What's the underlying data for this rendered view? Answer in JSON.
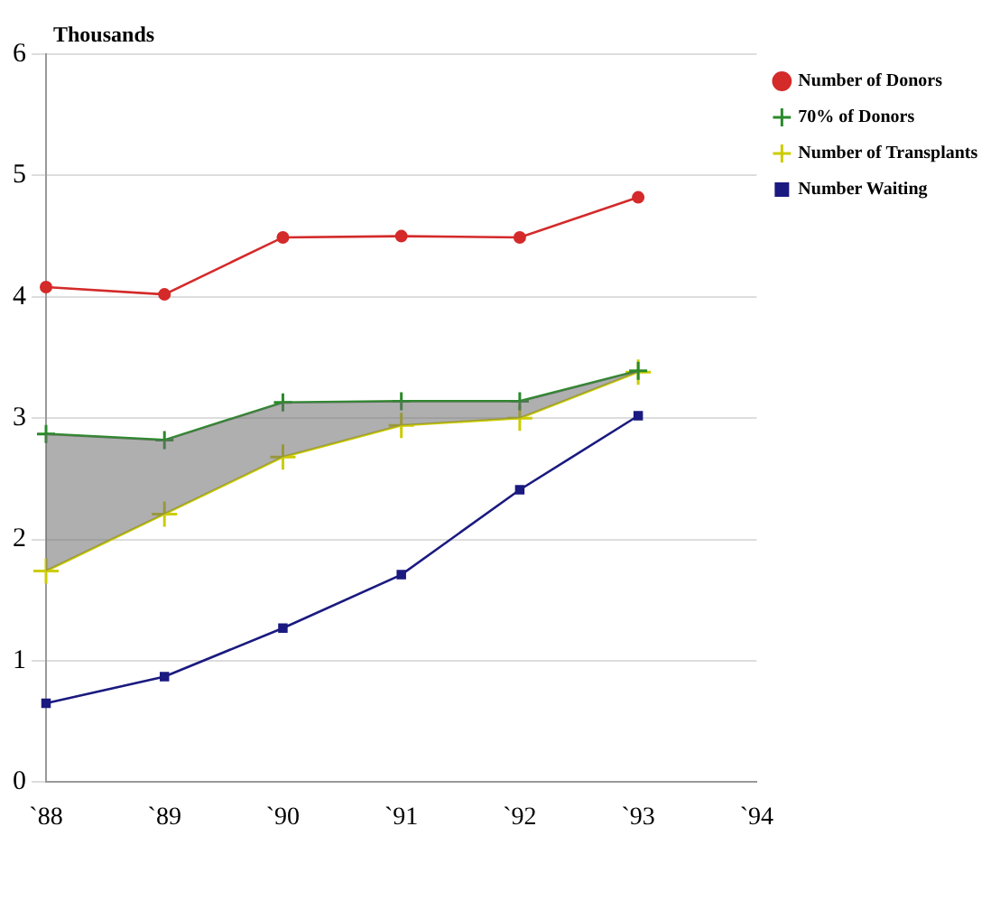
{
  "chart_data": {
    "type": "line",
    "ylabel": "Thousands",
    "categories": [
      "`88",
      "`89",
      "`90",
      "`91",
      "`92",
      "`93",
      "`94"
    ],
    "series": [
      {
        "name": "Number of Donors",
        "color": "#d42a2a",
        "marker": "circle",
        "values": [
          4.08,
          4.02,
          4.49,
          4.5,
          4.49,
          4.82,
          null
        ]
      },
      {
        "name": "70% of Donors",
        "color": "#2a8a2a",
        "marker": "cross",
        "values": [
          2.87,
          2.82,
          3.13,
          3.14,
          3.14,
          3.39,
          null
        ],
        "lower": [
          1.74,
          2.21,
          2.68,
          2.94,
          3.0,
          3.38,
          null
        ],
        "upper": [
          2.87,
          2.82,
          3.13,
          3.14,
          3.14,
          3.39,
          null
        ]
      },
      {
        "name": "Number of Transplants",
        "color": "#cccc00",
        "marker": "cross",
        "values": [
          1.74,
          2.21,
          2.68,
          2.94,
          3.0,
          3.38,
          null
        ]
      },
      {
        "name": "Number Waiting",
        "color": "#1a1a80",
        "marker": "square",
        "values": [
          0.65,
          0.87,
          1.27,
          1.71,
          2.41,
          3.02,
          null
        ]
      }
    ],
    "ylim": [
      0,
      6
    ],
    "yticks": [
      0,
      1,
      2,
      3,
      4,
      5,
      6
    ],
    "grid": "y",
    "legend": "right"
  }
}
